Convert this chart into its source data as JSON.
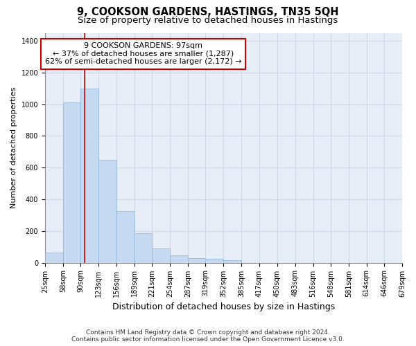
{
  "title": "9, COOKSON GARDENS, HASTINGS, TN35 5QH",
  "subtitle": "Size of property relative to detached houses in Hastings",
  "xlabel": "Distribution of detached houses by size in Hastings",
  "ylabel": "Number of detached properties",
  "footer_line1": "Contains HM Land Registry data © Crown copyright and database right 2024.",
  "footer_line2": "Contains public sector information licensed under the Open Government Licence v3.0.",
  "annotation_title": "9 COOKSON GARDENS: 97sqm",
  "annotation_line2": "← 37% of detached houses are smaller (1,287)",
  "annotation_line3": "62% of semi-detached houses are larger (2,172) →",
  "property_size": 97,
  "bar_edges": [
    25,
    58,
    90,
    123,
    156,
    189,
    221,
    254,
    287,
    319,
    352,
    385,
    417,
    450,
    483,
    516,
    548,
    581,
    614,
    646,
    679
  ],
  "bar_heights": [
    62,
    1010,
    1100,
    650,
    325,
    185,
    90,
    47,
    28,
    25,
    15,
    0,
    0,
    0,
    0,
    0,
    0,
    0,
    0,
    0
  ],
  "bar_color": "#c5d9f1",
  "bar_edge_color": "#8ab4d8",
  "vline_color": "#cc0000",
  "vline_x": 97,
  "ylim": [
    0,
    1450
  ],
  "yticks": [
    0,
    200,
    400,
    600,
    800,
    1000,
    1200,
    1400
  ],
  "grid_color": "#d0d8e8",
  "background_color": "#e8eef8",
  "annotation_box_color": "#ffffff",
  "annotation_box_edge": "#cc0000",
  "title_fontsize": 10.5,
  "subtitle_fontsize": 9.5,
  "xlabel_fontsize": 9,
  "ylabel_fontsize": 8,
  "tick_fontsize": 7,
  "annotation_fontsize": 8,
  "footer_fontsize": 6.5
}
